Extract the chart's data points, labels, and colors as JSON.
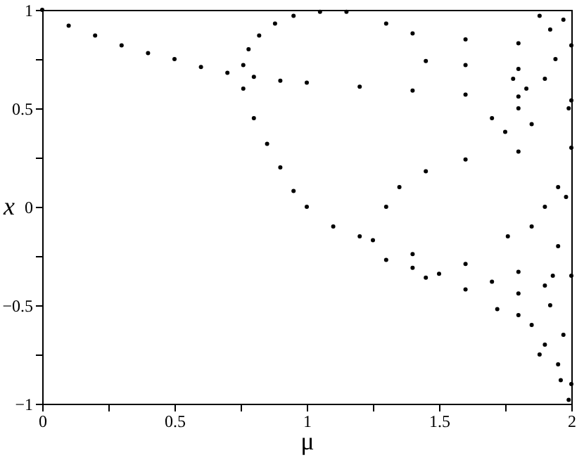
{
  "chart_data": {
    "type": "scatter",
    "xlabel": "μ",
    "ylabel": "x",
    "marker": "circle",
    "grid": false,
    "xlim": [
      0,
      2
    ],
    "ylim": [
      -1,
      1
    ],
    "xticks": [
      0,
      {
        "value": 0.25,
        "label": null
      },
      0.5,
      {
        "value": 0.75,
        "label": null
      },
      1,
      {
        "value": 1.25,
        "label": null
      },
      1.5,
      {
        "value": 1.75,
        "label": null
      },
      2
    ],
    "yticks": [
      -1,
      {
        "value": -0.75,
        "label": null
      },
      -0.5,
      {
        "value": -0.25,
        "label": null
      },
      0,
      {
        "value": 0.25,
        "label": null
      },
      0.5,
      {
        "value": 0.75,
        "label": null
      },
      1
    ],
    "series": [
      {
        "color": "#000000",
        "x": [
          0,
          0.1,
          0.2,
          0.3,
          0.4,
          0.5,
          0.6,
          0.7,
          0.8,
          0.9,
          1.0,
          1.2,
          1.4,
          1.6,
          1.8,
          2.0,
          0.76,
          0.78,
          0.82,
          0.88,
          0.95,
          1.05,
          1.15,
          0.76,
          0.8,
          0.85,
          0.9,
          0.95,
          1.0,
          1.1,
          1.2,
          1.25,
          1.4,
          1.6,
          1.8,
          2.0,
          1.3,
          1.35,
          1.45,
          1.6,
          1.8,
          2.0,
          1.3,
          1.4,
          1.5,
          1.7,
          1.9,
          1.3,
          1.4,
          1.6,
          1.8,
          2.0,
          1.45,
          1.6,
          1.8,
          1.45,
          1.6,
          1.8,
          1.8,
          1.85,
          1.9,
          1.95,
          2.0,
          1.92,
          1.97,
          1.88,
          1.99,
          1.96,
          1.7,
          1.75,
          1.8,
          1.85,
          1.9,
          1.95,
          1.9,
          1.85,
          1.95,
          1.98,
          1.92,
          1.97,
          1.88,
          1.83,
          1.78,
          1.72,
          1.76,
          1.93,
          1.99,
          1.94
        ],
        "values": [
          1.0,
          0.92,
          0.87,
          0.82,
          0.78,
          0.75,
          0.71,
          0.68,
          0.66,
          0.64,
          0.63,
          0.61,
          0.59,
          0.57,
          0.56,
          0.54,
          0.72,
          0.8,
          0.87,
          0.93,
          0.97,
          0.99,
          0.99,
          0.6,
          0.45,
          0.32,
          0.2,
          0.08,
          0.0,
          -0.1,
          -0.15,
          -0.17,
          -0.24,
          -0.29,
          -0.33,
          -0.35,
          0.0,
          0.1,
          0.18,
          0.24,
          0.28,
          0.3,
          -0.27,
          -0.31,
          -0.34,
          -0.38,
          -0.4,
          0.93,
          0.88,
          0.85,
          0.83,
          0.82,
          -0.36,
          -0.42,
          -0.44,
          0.74,
          0.72,
          0.7,
          -0.55,
          -0.6,
          -0.7,
          -0.8,
          -0.9,
          -0.5,
          -0.65,
          -0.75,
          -0.98,
          -0.88,
          0.45,
          0.38,
          0.5,
          0.42,
          0.65,
          0.1,
          0.0,
          -0.1,
          -0.2,
          0.05,
          0.9,
          0.95,
          0.97,
          0.6,
          0.65,
          -0.52,
          -0.15,
          -0.35,
          0.5,
          0.75
        ]
      }
    ]
  }
}
